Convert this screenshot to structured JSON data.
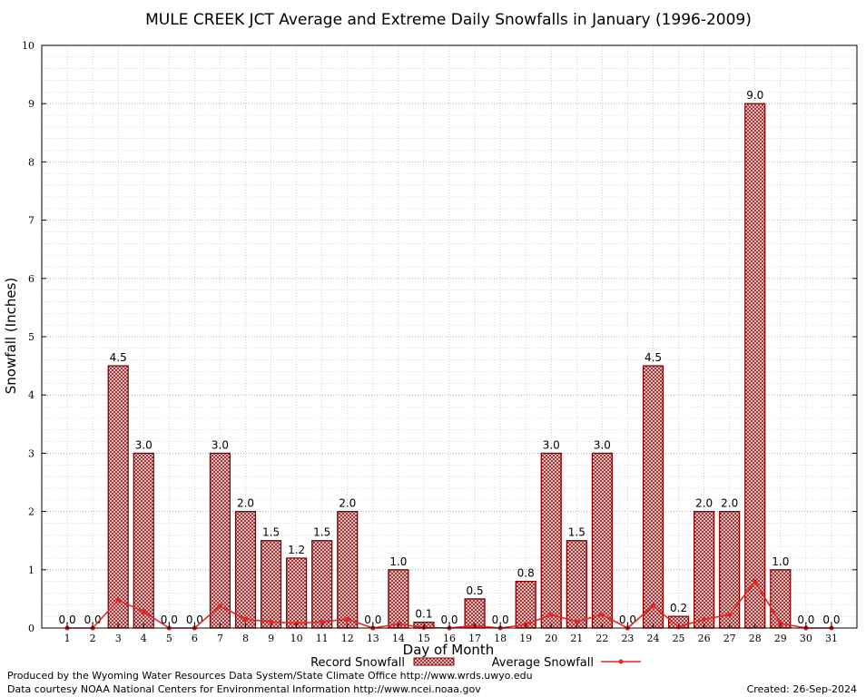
{
  "chart_data": {
    "type": "bar",
    "title": "MULE CREEK JCT Average and Extreme Daily Snowfalls in January (1996-2009)",
    "xlabel": "Day of Month",
    "ylabel": "Snowfall (Inches)",
    "ylim": [
      0,
      10
    ],
    "yticks": [
      "0",
      "1",
      "2",
      "3",
      "4",
      "5",
      "6",
      "7",
      "8",
      "9",
      "10"
    ],
    "grid": true,
    "categories": [
      "1",
      "2",
      "3",
      "4",
      "5",
      "6",
      "7",
      "8",
      "9",
      "10",
      "11",
      "12",
      "13",
      "14",
      "15",
      "16",
      "17",
      "18",
      "19",
      "20",
      "21",
      "22",
      "23",
      "24",
      "25",
      "26",
      "27",
      "28",
      "29",
      "30",
      "31"
    ],
    "series": [
      {
        "name": "Record Snowfall",
        "kind": "bar",
        "color": "#8b0000",
        "values": [
          0.0,
          0.0,
          4.5,
          3.0,
          0.0,
          0.0,
          3.0,
          2.0,
          1.5,
          1.2,
          1.5,
          2.0,
          0.0,
          1.0,
          0.1,
          0.0,
          0.5,
          0.0,
          0.8,
          3.0,
          1.5,
          3.0,
          0.0,
          4.5,
          0.2,
          2.0,
          2.0,
          9.0,
          1.0,
          0.0,
          0.0
        ],
        "labels": [
          "0.0",
          "0.0",
          "4.5",
          "3.0",
          "0.0",
          "0.0",
          "3.0",
          "2.0",
          "1.5",
          "1.2",
          "1.5",
          "2.0",
          "0.0",
          "1.0",
          "0.1",
          "0.0",
          "0.5",
          "0.0",
          "0.8",
          "3.0",
          "1.5",
          "3.0",
          "0.0",
          "4.5",
          "0.2",
          "2.0",
          "2.0",
          "9.0",
          "1.0",
          "0.0",
          "0.0"
        ]
      },
      {
        "name": "Average Snowfall",
        "kind": "line",
        "color": "#ee2222",
        "values": [
          0.0,
          0.0,
          0.48,
          0.28,
          0.0,
          0.0,
          0.38,
          0.15,
          0.11,
          0.08,
          0.11,
          0.15,
          0.0,
          0.07,
          0.01,
          0.0,
          0.04,
          0.0,
          0.06,
          0.23,
          0.11,
          0.23,
          0.0,
          0.38,
          0.02,
          0.15,
          0.23,
          0.8,
          0.08,
          0.0,
          0.0
        ]
      }
    ],
    "legend_position": "bottom-center"
  },
  "footer": {
    "line1": "Produced by the Wyoming Water Resources Data System/State Climate Office http://www.wrds.uwyo.edu",
    "line2": "Data courtesy NOAA National Centers for Environmental Information http://www.ncei.noaa.gov",
    "created": "Created:  26-Sep-2024"
  }
}
